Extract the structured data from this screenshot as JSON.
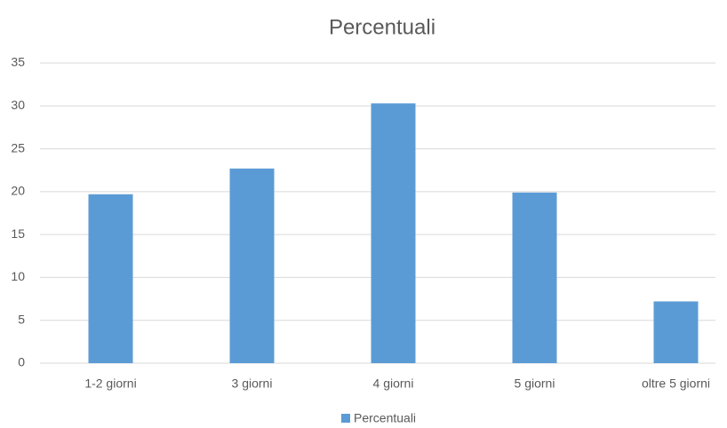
{
  "chart_data": {
    "type": "bar",
    "title": "Percentuali",
    "categories": [
      "1-2 giorni",
      "3 giorni",
      "4 giorni",
      "5 giorni",
      "oltre 5 giorni"
    ],
    "series": [
      {
        "name": "Percentuali",
        "color": "#5b9bd5",
        "values": [
          19.7,
          22.7,
          30.3,
          19.9,
          7.2
        ]
      }
    ],
    "ylim": [
      0,
      35
    ],
    "yticks": [
      0,
      5,
      10,
      15,
      20,
      25,
      30,
      35
    ],
    "grid": true,
    "legend": "bottom"
  }
}
